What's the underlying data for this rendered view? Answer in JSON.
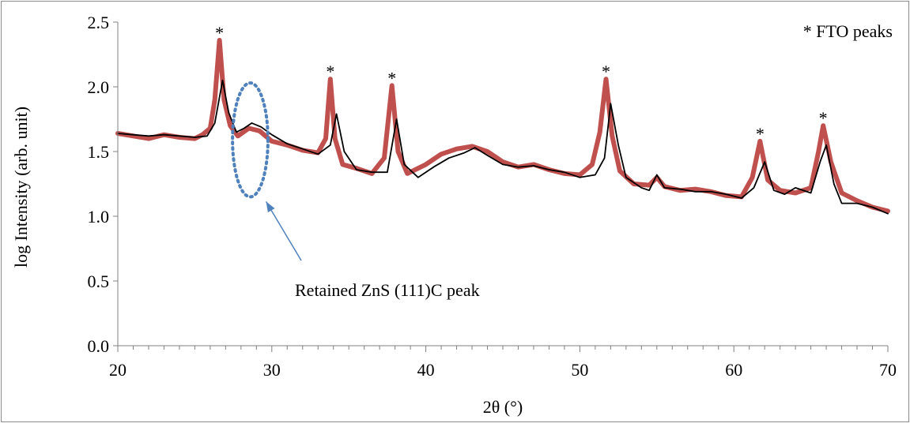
{
  "chart_data": {
    "type": "line",
    "xlabel": "2θ (°)",
    "ylabel": "log Intensity (arb. unit)",
    "xlim": [
      20,
      70
    ],
    "ylim": [
      0.0,
      2.5
    ],
    "x_ticks": [
      "20",
      "30",
      "40",
      "50",
      "60",
      "70"
    ],
    "y_ticks": [
      "0.0",
      "0.5",
      "1.0",
      "1.5",
      "2.0",
      "2.5"
    ],
    "grid": false,
    "legend_text": "* FTO peaks",
    "peak_marker": "*",
    "fto_peaks": [
      {
        "x": 26.6,
        "y": 2.36
      },
      {
        "x": 33.8,
        "y": 2.06
      },
      {
        "x": 37.8,
        "y": 2.01
      },
      {
        "x": 51.7,
        "y": 2.06
      },
      {
        "x": 61.7,
        "y": 1.58
      },
      {
        "x": 65.8,
        "y": 1.7
      }
    ],
    "annotation": {
      "text": "Retained ZnS (111)C peak",
      "target": {
        "x": 28.6,
        "y": 1.59
      },
      "ellipse_x_halfwidth": 1.15,
      "ellipse_y_halfheight": 0.44
    },
    "series": [
      {
        "color": "#C0504D",
        "x": [
          20,
          21,
          22,
          23,
          24,
          25,
          25.5,
          26,
          26.3,
          26.6,
          26.9,
          27.3,
          27.8,
          28.5,
          29.2,
          30,
          31,
          32,
          33,
          33.5,
          33.8,
          34.1,
          34.6,
          35.5,
          36.5,
          37.3,
          37.8,
          38.2,
          38.8,
          40,
          41,
          42,
          43,
          44,
          45,
          46,
          47,
          48,
          49,
          50,
          50.8,
          51.3,
          51.7,
          52.1,
          52.6,
          53.5,
          54.5,
          55,
          55.5,
          56.5,
          57.5,
          58.5,
          59.5,
          60.5,
          61.2,
          61.7,
          62.2,
          63,
          64,
          65,
          65.5,
          65.8,
          66.3,
          67,
          68,
          69,
          70
        ],
        "y": [
          1.64,
          1.62,
          1.6,
          1.63,
          1.61,
          1.6,
          1.63,
          1.68,
          1.9,
          2.36,
          1.9,
          1.7,
          1.62,
          1.68,
          1.66,
          1.58,
          1.55,
          1.51,
          1.49,
          1.6,
          2.06,
          1.6,
          1.4,
          1.37,
          1.33,
          1.45,
          2.01,
          1.5,
          1.33,
          1.4,
          1.48,
          1.52,
          1.54,
          1.5,
          1.42,
          1.38,
          1.4,
          1.36,
          1.33,
          1.32,
          1.4,
          1.65,
          2.06,
          1.62,
          1.35,
          1.25,
          1.24,
          1.3,
          1.23,
          1.2,
          1.21,
          1.19,
          1.16,
          1.15,
          1.3,
          1.58,
          1.28,
          1.2,
          1.18,
          1.22,
          1.5,
          1.7,
          1.42,
          1.18,
          1.12,
          1.07,
          1.04
        ]
      },
      {
        "color": "#000000",
        "x": [
          20,
          21,
          22,
          23,
          24,
          25,
          25.8,
          26.3,
          26.8,
          27.2,
          27.7,
          28.2,
          28.7,
          29.3,
          30,
          31,
          32,
          33,
          33.8,
          34.2,
          34.7,
          35.5,
          36.5,
          37.5,
          38.1,
          38.6,
          39.5,
          40.5,
          41.5,
          42.5,
          43.2,
          44,
          45,
          46,
          47,
          48,
          49,
          50,
          51,
          51.6,
          52,
          52.5,
          53,
          54,
          54.5,
          55,
          55.5,
          56.5,
          57.5,
          58.5,
          59.5,
          60.5,
          61.3,
          62,
          62.6,
          63.3,
          64,
          65,
          65.6,
          66,
          66.5,
          67,
          68,
          69,
          70
        ],
        "y": [
          1.64,
          1.63,
          1.62,
          1.63,
          1.62,
          1.61,
          1.62,
          1.72,
          2.05,
          1.8,
          1.65,
          1.68,
          1.72,
          1.69,
          1.63,
          1.56,
          1.52,
          1.48,
          1.55,
          1.79,
          1.5,
          1.36,
          1.34,
          1.34,
          1.75,
          1.4,
          1.3,
          1.38,
          1.45,
          1.49,
          1.53,
          1.47,
          1.4,
          1.38,
          1.39,
          1.36,
          1.34,
          1.3,
          1.32,
          1.45,
          1.87,
          1.55,
          1.3,
          1.22,
          1.2,
          1.32,
          1.22,
          1.21,
          1.19,
          1.19,
          1.17,
          1.14,
          1.22,
          1.42,
          1.2,
          1.17,
          1.22,
          1.18,
          1.42,
          1.55,
          1.25,
          1.1,
          1.1,
          1.07,
          1.02
        ]
      }
    ]
  }
}
